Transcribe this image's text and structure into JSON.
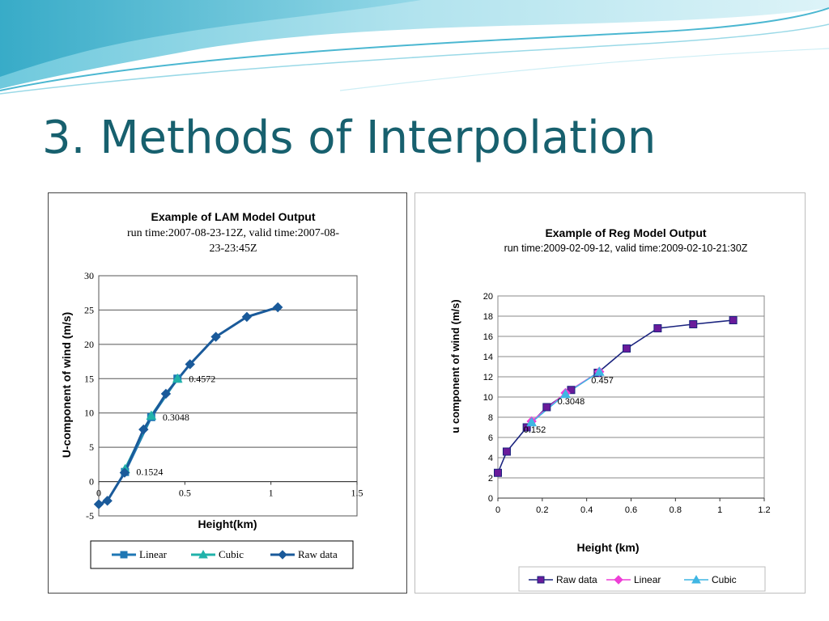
{
  "slide": {
    "title": "3. Methods of Interpolation",
    "colors": {
      "title": "#17606e",
      "banner_light": "#bfe6ef",
      "banner_mid": "#7cc9dc",
      "banner_dark": "#3aa9c6"
    }
  },
  "chart_data": [
    {
      "type": "line",
      "title": "Example of LAM Model Output",
      "subtitle_line1": "run time:2007-08-23-12Z, valid time:2007-08-",
      "subtitle_line2": "23-23:45Z",
      "xlabel": "Height(km)",
      "ylabel": "U-component of wind (m/s)",
      "xlim": [
        0,
        1.5
      ],
      "ylim": [
        -5,
        30
      ],
      "xticks": [
        0,
        0.5,
        1,
        1.5
      ],
      "xtick_labels": [
        "0",
        "0.5",
        "1",
        "1.5"
      ],
      "yticks": [
        -5,
        0,
        5,
        10,
        15,
        20,
        25,
        30
      ],
      "ytick_labels": [
        "-5",
        "0",
        "5",
        "10",
        "15",
        "20",
        "25",
        "30"
      ],
      "legend_position": "bottom",
      "series": [
        {
          "name": "Linear",
          "color": "#1f77b4",
          "marker": "square",
          "x": [
            0.1524,
            0.3048,
            0.4572
          ],
          "y": [
            1.4,
            9.4,
            15.0
          ]
        },
        {
          "name": "Cubic",
          "color": "#20b2aa",
          "marker": "triangle",
          "x": [
            0.1524,
            0.3048,
            0.4572
          ],
          "y": [
            1.8,
            9.6,
            15.0
          ]
        },
        {
          "name": "Raw data",
          "color": "#1a5a9a",
          "marker": "diamond",
          "x": [
            0.0,
            0.05,
            0.15,
            0.26,
            0.39,
            0.53,
            0.68,
            0.86,
            1.04
          ],
          "y": [
            -3.3,
            -2.8,
            1.3,
            7.6,
            12.8,
            17.1,
            21.1,
            24.0,
            25.4
          ]
        }
      ],
      "annotations": [
        {
          "text": "0.1524",
          "x": 0.1524,
          "y": 1.4
        },
        {
          "text": "0.3048",
          "x": 0.3048,
          "y": 9.4
        },
        {
          "text": "0.4572",
          "x": 0.4572,
          "y": 15.0
        }
      ]
    },
    {
      "type": "line",
      "title": "Example of Reg Model Output",
      "subtitle_line1": "run time:2009-02-09-12, valid time:2009-02-10-21:30Z",
      "xlabel": "Height (km)",
      "ylabel": "u component of wind (m/s)",
      "xlim": [
        0,
        1.2
      ],
      "ylim": [
        0,
        20
      ],
      "xticks": [
        0,
        0.2,
        0.4,
        0.6,
        0.8,
        1.0,
        1.2
      ],
      "xtick_labels": [
        "0",
        "0.2",
        "0.4",
        "0.6",
        "0.8",
        "1",
        "1.2"
      ],
      "yticks": [
        0,
        2,
        4,
        6,
        8,
        10,
        12,
        14,
        16,
        18,
        20
      ],
      "ytick_labels": [
        "0",
        "2",
        "4",
        "6",
        "8",
        "10",
        "12",
        "14",
        "16",
        "18",
        "20"
      ],
      "legend_position": "bottom",
      "series": [
        {
          "name": "Raw data",
          "color": "#1a237e",
          "marker": "square",
          "x": [
            0.0,
            0.04,
            0.13,
            0.22,
            0.33,
            0.45,
            0.58,
            0.72,
            0.88,
            1.06
          ],
          "y": [
            2.5,
            4.6,
            7.0,
            9.0,
            10.7,
            12.4,
            14.8,
            16.8,
            17.2,
            17.6
          ]
        },
        {
          "name": "Linear",
          "color": "#ee3fd6",
          "marker": "diamond",
          "x": [
            0.152,
            0.3048,
            0.457
          ],
          "y": [
            7.6,
            10.4,
            12.5
          ]
        },
        {
          "name": "Cubic",
          "color": "#3fb6e3",
          "marker": "triangle",
          "x": [
            0.152,
            0.3048,
            0.457
          ],
          "y": [
            7.5,
            10.3,
            12.5
          ]
        }
      ],
      "annotations": [
        {
          "text": "0.152",
          "x": 0.152,
          "y": 7.6
        },
        {
          "text": "0.3048",
          "x": 0.3048,
          "y": 10.4
        },
        {
          "text": "0.457",
          "x": 0.457,
          "y": 12.5
        }
      ]
    }
  ]
}
